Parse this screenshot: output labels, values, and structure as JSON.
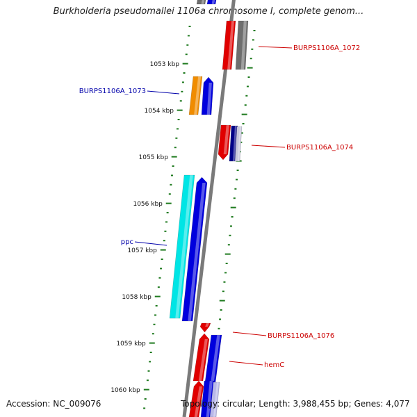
{
  "title": "Burkholderia pseudomallei 1106a chromosome I, complete genom...",
  "footer": {
    "accession": "Accession: NC_009076",
    "summary": "Topology: circular; Length: 3,988,455 bp; Genes: 4,077"
  },
  "colors": {
    "tick": "#1e7a1e",
    "backbone": "#7a7a7a",
    "red": "#e00000",
    "blue": "#0000dd",
    "cyan": "#00e5e5",
    "orange": "#f08c00",
    "grey": "#6e6e6e",
    "navy": "#000088",
    "label_red": "#cc0000",
    "label_blue": "#0000aa"
  },
  "kbp_labels": [
    "1053 kbp",
    "1054 kbp",
    "1055 kbp",
    "1056 kbp",
    "1057 kbp",
    "1058 kbp",
    "1059 kbp",
    "1060 kbp"
  ],
  "genes": [
    {
      "name": "BURPS1106A_1072",
      "color": "label_red"
    },
    {
      "name": "BURPS1106A_1073",
      "color": "label_blue"
    },
    {
      "name": "BURPS1106A_1074",
      "color": "label_red"
    },
    {
      "name": "ppc",
      "color": "label_blue"
    },
    {
      "name": "BURPS1106A_1076",
      "color": "label_red"
    },
    {
      "name": "hemC",
      "color": "label_red"
    }
  ]
}
